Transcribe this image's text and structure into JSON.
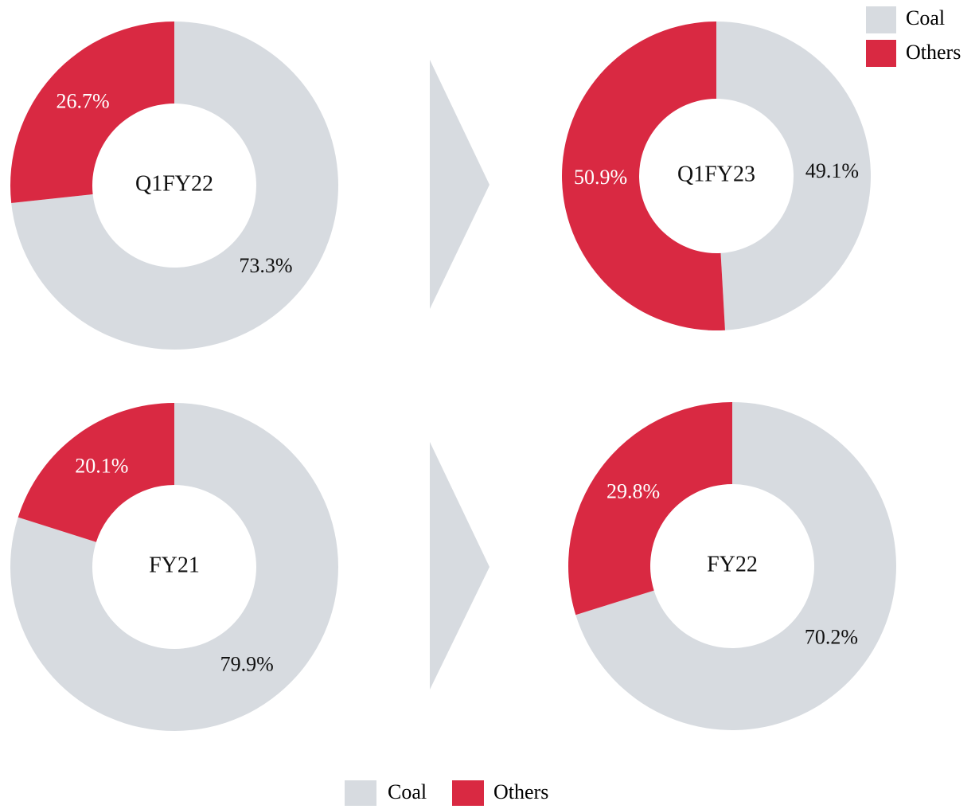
{
  "chart_data": [
    {
      "type": "donut",
      "title": "Q1FY22",
      "categories": [
        "Coal",
        "Others"
      ],
      "values": [
        73.3,
        26.7
      ],
      "value_labels": [
        "73.3%",
        "26.7%"
      ],
      "colors": [
        "#d7dbe0",
        "#d92942"
      ]
    },
    {
      "type": "donut",
      "title": "Q1FY23",
      "categories": [
        "Coal",
        "Others"
      ],
      "values": [
        49.1,
        50.9
      ],
      "value_labels": [
        "49.1%",
        "50.9%"
      ],
      "colors": [
        "#d7dbe0",
        "#d92942"
      ]
    },
    {
      "type": "donut",
      "title": "FY21",
      "categories": [
        "Coal",
        "Others"
      ],
      "values": [
        79.9,
        20.1
      ],
      "value_labels": [
        "79.9%",
        "20.1%"
      ],
      "colors": [
        "#d7dbe0",
        "#d92942"
      ]
    },
    {
      "type": "donut",
      "title": "FY22",
      "categories": [
        "Coal",
        "Others"
      ],
      "values": [
        70.2,
        29.8
      ],
      "value_labels": [
        "70.2%",
        "29.8%"
      ],
      "colors": [
        "#d7dbe0",
        "#d92942"
      ]
    }
  ]
}
